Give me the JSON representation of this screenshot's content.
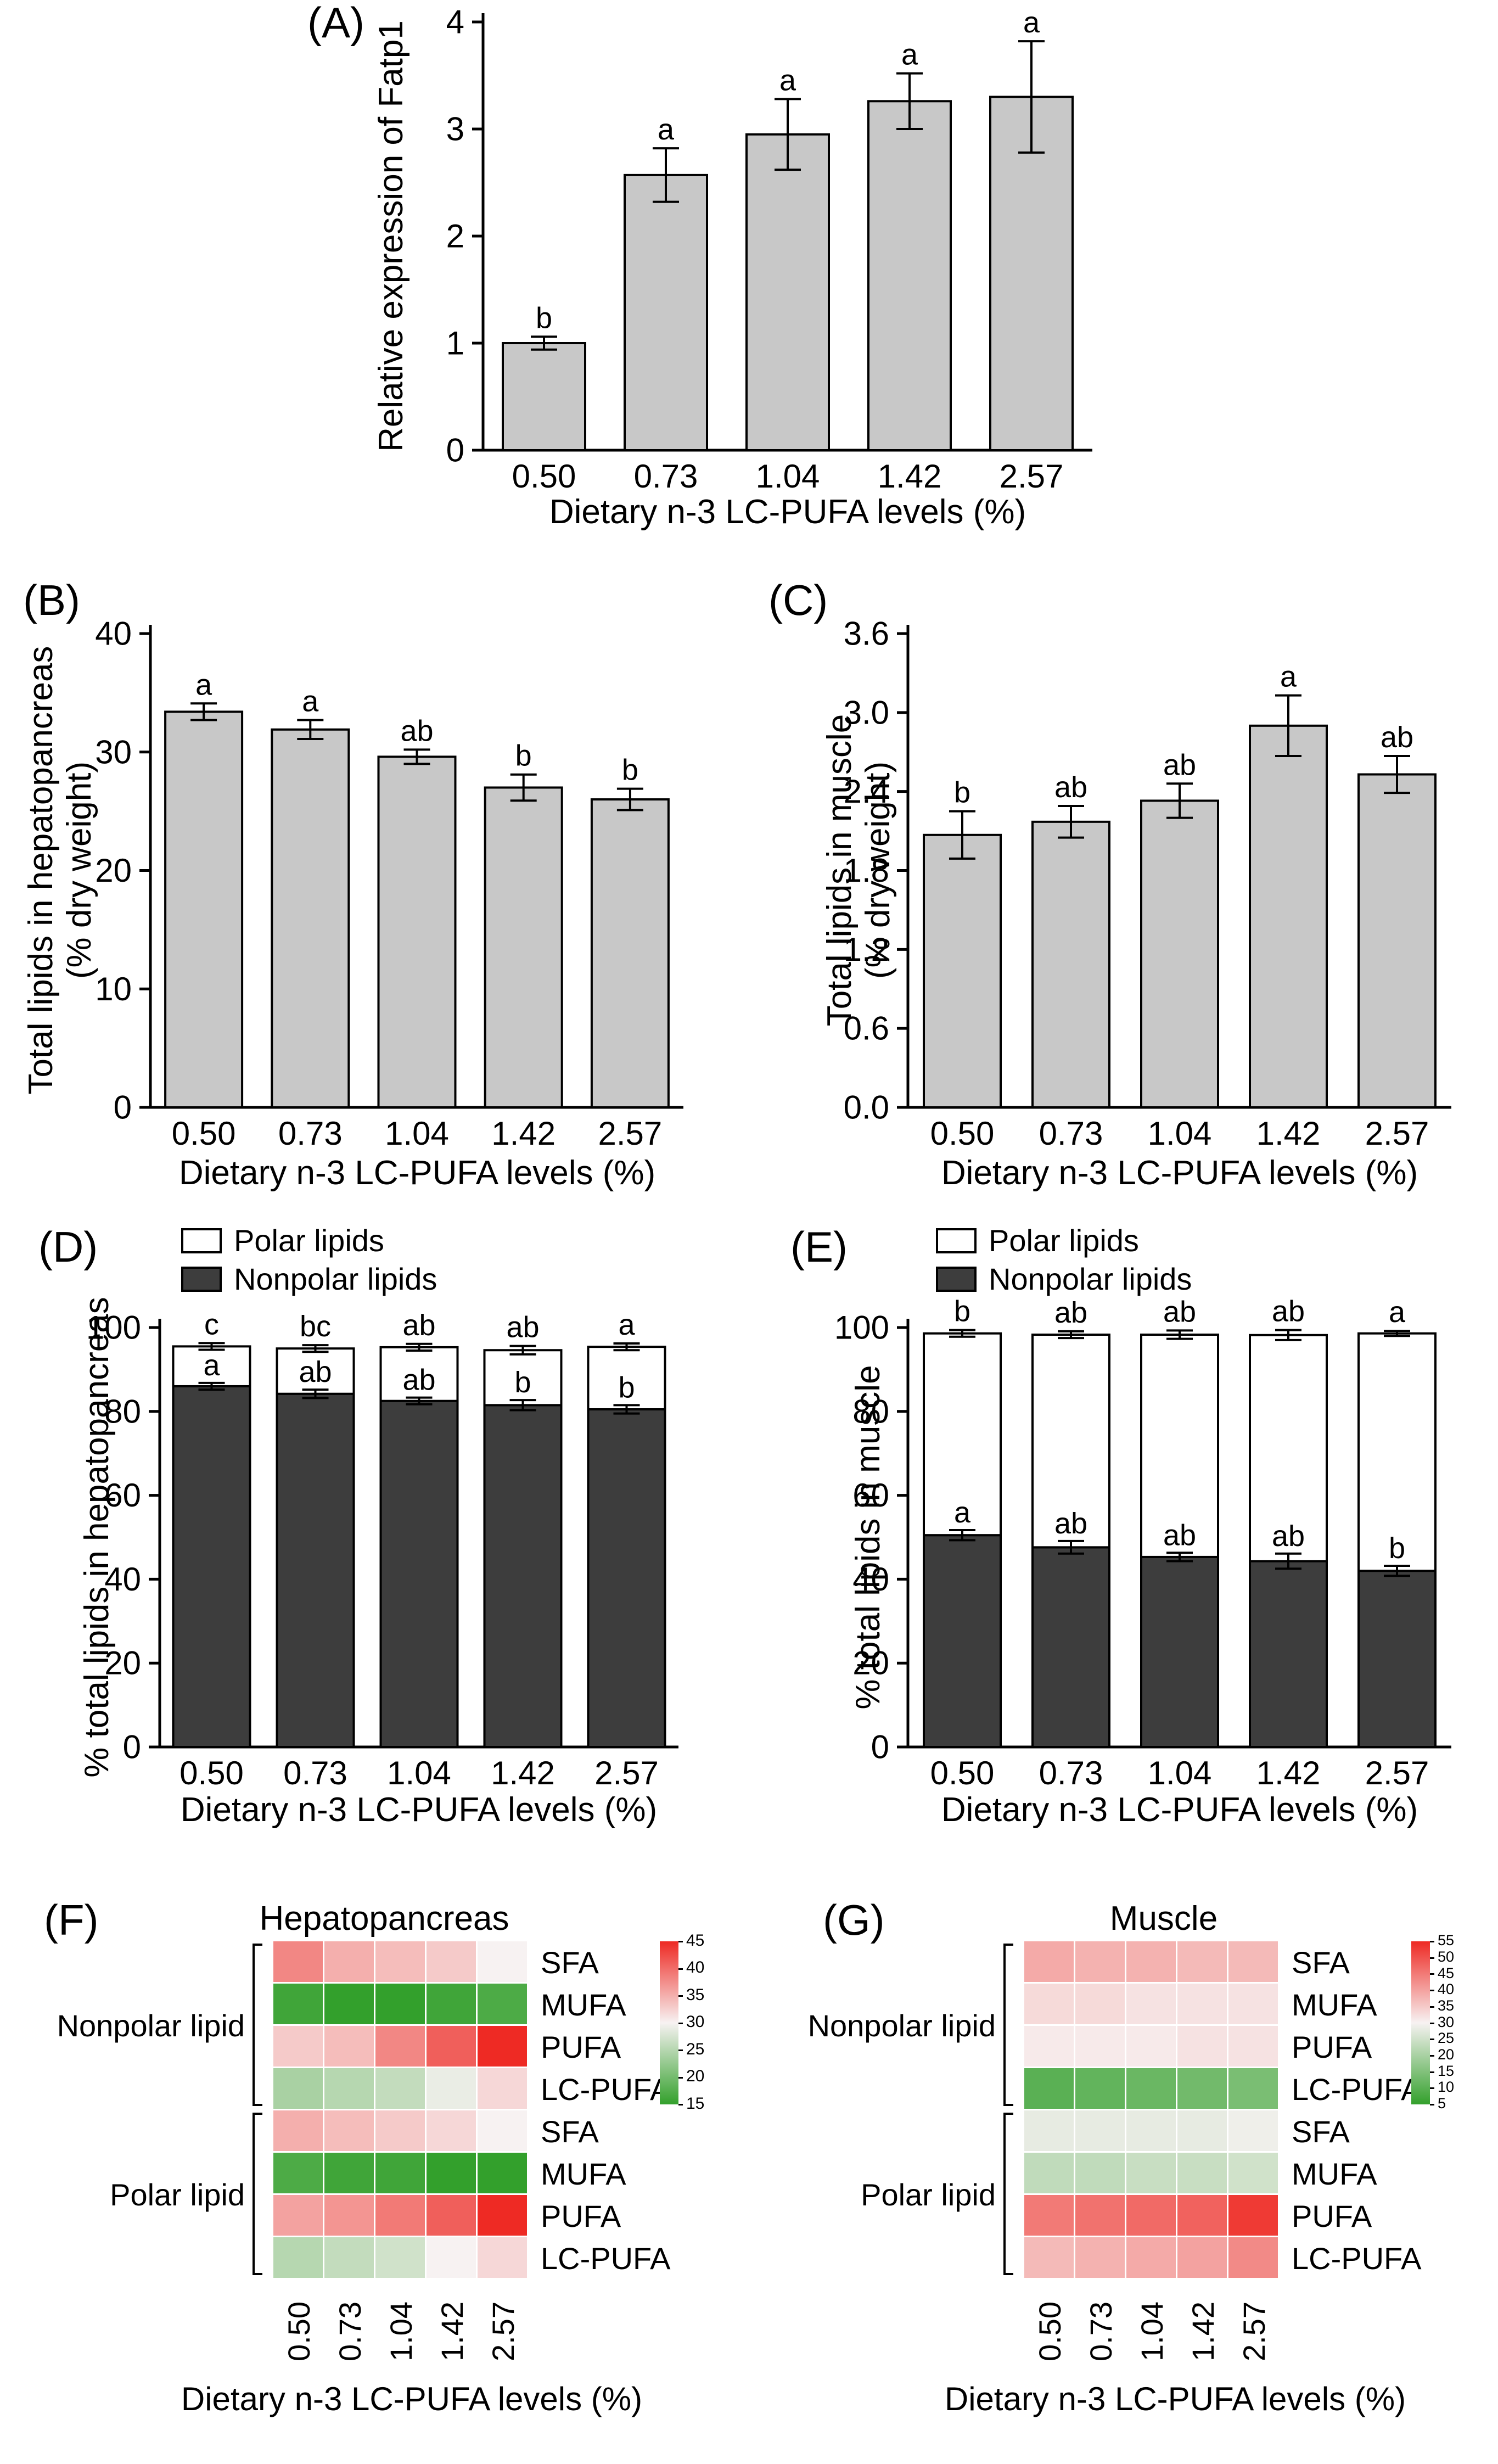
{
  "panels": {
    "A": {
      "label": "(A)"
    },
    "B": {
      "label": "(B)"
    },
    "C": {
      "label": "(C)"
    },
    "D": {
      "label": "(D)"
    },
    "E": {
      "label": "(E)"
    },
    "F": {
      "label": "(F)"
    },
    "G": {
      "label": "(G)"
    }
  },
  "chart_data": [
    {
      "id": "A",
      "type": "bar",
      "categories": [
        "0.50",
        "0.73",
        "1.04",
        "1.42",
        "2.57"
      ],
      "values": [
        1.0,
        2.57,
        2.95,
        3.26,
        3.3
      ],
      "errors": [
        0.06,
        0.25,
        0.33,
        0.26,
        0.52
      ],
      "sig_letters": [
        "b",
        "a",
        "a",
        "a",
        "a"
      ],
      "ylabel": "Relative expression of Fatp1",
      "xlabel": "Dietary n-3 LC-PUFA levels (%)",
      "ylim": [
        0,
        4
      ],
      "yticks": [
        0,
        1,
        2,
        3,
        4
      ],
      "ytick_labels": [
        "0",
        "1",
        "2",
        "3",
        "4"
      ],
      "bar_color": "#c8c8c8"
    },
    {
      "id": "B",
      "type": "bar",
      "categories": [
        "0.50",
        "0.73",
        "1.04",
        "1.42",
        "2.57"
      ],
      "values": [
        33.4,
        31.9,
        29.6,
        27.0,
        26.0
      ],
      "errors": [
        0.7,
        0.8,
        0.6,
        1.1,
        0.9
      ],
      "sig_letters": [
        "a",
        "a",
        "ab",
        "b",
        "b"
      ],
      "ylabel": "Total lipids  in hepatopancreas",
      "ylabel2": "(% dry weight)",
      "xlabel": "Dietary n-3 LC-PUFA levels (%)",
      "ylim": [
        0,
        40
      ],
      "yticks": [
        0,
        10,
        20,
        30,
        40
      ],
      "ytick_labels": [
        "0",
        "10",
        "20",
        "30",
        "40"
      ],
      "bar_color": "#c8c8c8"
    },
    {
      "id": "C",
      "type": "bar",
      "categories": [
        "0.50",
        "0.73",
        "1.04",
        "1.42",
        "2.57"
      ],
      "values": [
        2.07,
        2.17,
        2.33,
        2.9,
        2.53
      ],
      "errors": [
        0.18,
        0.12,
        0.13,
        0.23,
        0.14
      ],
      "sig_letters": [
        "b",
        "ab",
        "ab",
        "a",
        "ab"
      ],
      "ylabel": "Total lipids  in muscle",
      "ylabel2": "(% dry weight)",
      "xlabel": "Dietary n-3 LC-PUFA levels (%)",
      "ylim": [
        0,
        3.6
      ],
      "yticks": [
        0,
        0.6,
        1.2,
        1.8,
        2.4,
        3.0,
        3.6
      ],
      "ytick_labels": [
        "0.0",
        "0.6",
        "1.2",
        "1.8",
        "2.4",
        "3.0",
        "3.6"
      ],
      "bar_color": "#c8c8c8"
    },
    {
      "id": "D",
      "type": "stacked_bar",
      "categories": [
        "0.50",
        "0.73",
        "1.04",
        "1.42",
        "2.57"
      ],
      "series": [
        {
          "name": "Polar lipids",
          "color": "#ffffff"
        },
        {
          "name": "Nonpolar lipids",
          "color": "#3d3d3d"
        }
      ],
      "nonpolar": {
        "values": [
          86.0,
          84.2,
          82.5,
          81.5,
          80.5
        ],
        "errors": [
          0.8,
          1.0,
          0.8,
          1.2,
          1.0
        ],
        "sig_letters": [
          "a",
          "ab",
          "ab",
          "b",
          "b"
        ]
      },
      "total": {
        "values": [
          95.5,
          95.0,
          95.3,
          94.6,
          95.4
        ],
        "errors": [
          0.8,
          0.8,
          0.8,
          1.0,
          0.8
        ],
        "sig_letters": [
          "c",
          "bc",
          "ab",
          "ab",
          "a"
        ]
      },
      "ylabel": "% total lipids in hepatopancreas",
      "xlabel": "Dietary n-3 LC-PUFA levels (%)",
      "ylim": [
        0,
        100
      ],
      "yticks": [
        0,
        20,
        40,
        60,
        80,
        100
      ],
      "ytick_labels": [
        "0",
        "20",
        "40",
        "60",
        "80",
        "100"
      ]
    },
    {
      "id": "E",
      "type": "stacked_bar",
      "categories": [
        "0.50",
        "0.73",
        "1.04",
        "1.42",
        "2.57"
      ],
      "series": [
        {
          "name": "Polar lipids",
          "color": "#ffffff"
        },
        {
          "name": "Nonpolar lipids",
          "color": "#3d3d3d"
        }
      ],
      "nonpolar": {
        "values": [
          50.5,
          47.6,
          45.3,
          44.3,
          42.0
        ],
        "errors": [
          1.2,
          1.5,
          1.0,
          1.8,
          1.2
        ],
        "sig_letters": [
          "a",
          "ab",
          "ab",
          "ab",
          "b"
        ]
      },
      "total": {
        "values": [
          98.6,
          98.3,
          98.3,
          98.2,
          98.6
        ],
        "errors": [
          0.8,
          0.8,
          1.0,
          1.2,
          0.6
        ],
        "sig_letters": [
          "b",
          "ab",
          "ab",
          "ab",
          "a"
        ]
      },
      "ylabel": "% total lipids in muscle",
      "xlabel": "Dietary n-3 LC-PUFA levels (%)",
      "ylim": [
        0,
        100
      ],
      "yticks": [
        0,
        20,
        40,
        60,
        80,
        100
      ],
      "ytick_labels": [
        "0",
        "20",
        "40",
        "60",
        "80",
        "100"
      ]
    },
    {
      "id": "F",
      "type": "heatmap",
      "title": "Hepatopancreas",
      "columns": [
        "0.50",
        "0.73",
        "1.04",
        "1.42",
        "2.57"
      ],
      "row_groups": [
        {
          "name": "Nonpolar lipid",
          "rows": [
            "SFA",
            "MUFA",
            "PUFA",
            "LC-PUFA"
          ]
        },
        {
          "name": "Polar lipid",
          "rows": [
            "SFA",
            "MUFA",
            "PUFA",
            "LC-PUFA"
          ]
        }
      ],
      "values": [
        [
          38,
          35,
          34,
          33,
          30
        ],
        [
          16,
          15,
          15,
          16,
          17
        ],
        [
          33,
          34,
          38,
          41,
          45
        ],
        [
          24,
          25,
          26,
          29,
          32
        ],
        [
          35,
          34,
          33,
          32,
          30
        ],
        [
          17,
          16,
          16,
          15,
          15
        ],
        [
          36,
          37,
          39,
          41,
          45
        ],
        [
          25,
          26,
          27,
          30,
          32
        ]
      ],
      "scale": {
        "min": 15,
        "max": 45,
        "ticks": [
          45,
          40,
          35,
          30,
          25,
          20,
          15
        ],
        "low_color": "#33a02c",
        "mid_color": "#f7f2f2",
        "high_color": "#ee2a24"
      },
      "xlabel": "Dietary n-3 LC-PUFA levels (%)"
    },
    {
      "id": "G",
      "type": "heatmap",
      "title": "Muscle",
      "columns": [
        "0.50",
        "0.73",
        "1.04",
        "1.42",
        "2.57"
      ],
      "row_groups": [
        {
          "name": "Nonpolar lipid",
          "rows": [
            "SFA",
            "MUFA",
            "PUFA",
            "LC-PUFA"
          ]
        },
        {
          "name": "Polar lipid",
          "rows": [
            "SFA",
            "MUFA",
            "PUFA",
            "LC-PUFA"
          ]
        }
      ],
      "values": [
        [
          39,
          38,
          38,
          37,
          37
        ],
        [
          33,
          33,
          32,
          32,
          32
        ],
        [
          31,
          31,
          31,
          32,
          32
        ],
        [
          10,
          11,
          12,
          13,
          14
        ],
        [
          28,
          28,
          28,
          28,
          29
        ],
        [
          23,
          23,
          24,
          24,
          25
        ],
        [
          45,
          46,
          47,
          48,
          53
        ],
        [
          37,
          38,
          39,
          40,
          43
        ]
      ],
      "scale": {
        "min": 5,
        "max": 55,
        "ticks": [
          55,
          50,
          45,
          40,
          35,
          30,
          25,
          20,
          15,
          10,
          5
        ],
        "low_color": "#33a02c",
        "mid_color": "#f7f2f2",
        "high_color": "#ee2a24"
      },
      "xlabel": "Dietary n-3 LC-PUFA levels (%)"
    }
  ]
}
